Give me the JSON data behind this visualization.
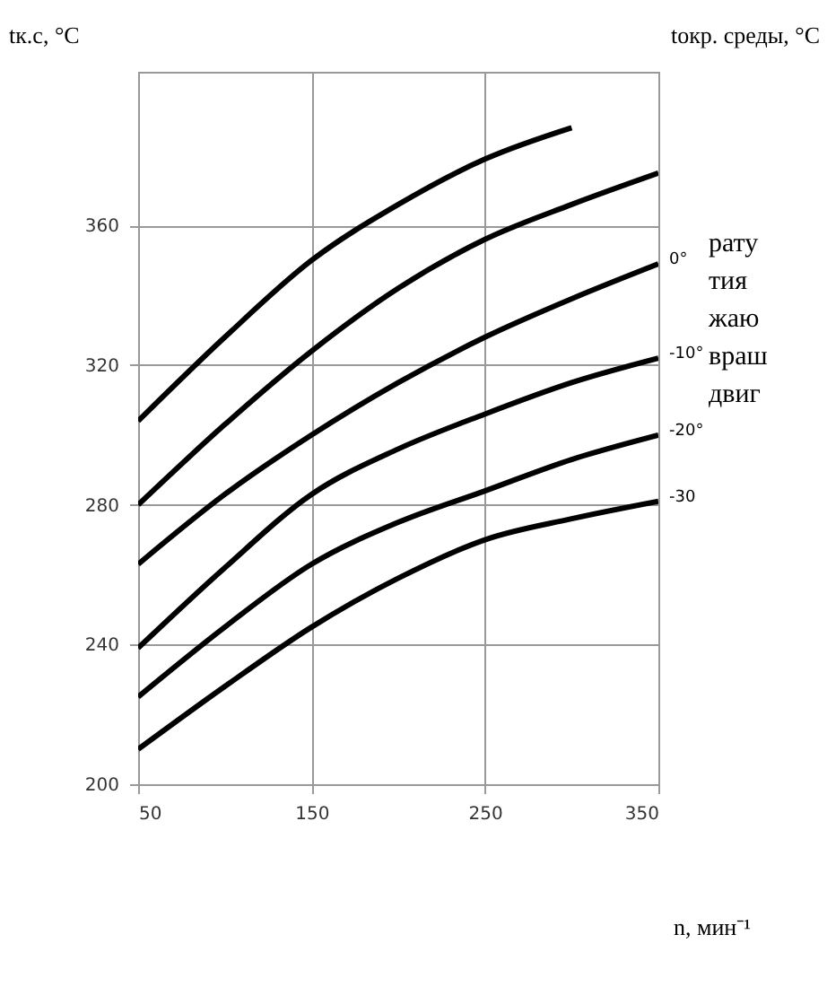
{
  "chart_data": {
    "type": "line",
    "ylabel": "tк.с, °C",
    "legend_title": "tокр. среды, °C",
    "xlabel": "n, мин⁻¹",
    "x": [
      50,
      100,
      150,
      200,
      250,
      300,
      350
    ],
    "series": [
      {
        "color": "#000000",
        "values": [
          304,
          328,
          350,
          366,
          379,
          388,
          null
        ]
      },
      {
        "color": "#000000",
        "values": [
          280,
          303,
          324,
          342,
          356,
          366,
          375
        ]
      },
      {
        "name": "0°",
        "color": "#000000",
        "values": [
          263,
          283,
          300,
          315,
          328,
          339,
          349
        ]
      },
      {
        "name": "-10°",
        "color": "#000000",
        "values": [
          239,
          262,
          283,
          296,
          306,
          315,
          322
        ]
      },
      {
        "name": "-20°",
        "color": "#000000",
        "values": [
          225,
          245,
          263,
          275,
          284,
          293,
          300
        ]
      },
      {
        "name": "-30",
        "color": "#000000",
        "values": [
          210,
          228,
          245,
          259,
          270,
          276,
          281
        ]
      }
    ],
    "xlim": [
      50,
      350
    ],
    "xticks": [
      50,
      150,
      250,
      350
    ],
    "ylim": [
      200,
      404
    ],
    "yticks": [
      200,
      240,
      280,
      320,
      360
    ],
    "grid": true,
    "legend": false,
    "marker": "none",
    "line_style": "solid",
    "annotations": [
      "рату",
      "тия",
      "жаю",
      "враш",
      "двиг"
    ]
  }
}
